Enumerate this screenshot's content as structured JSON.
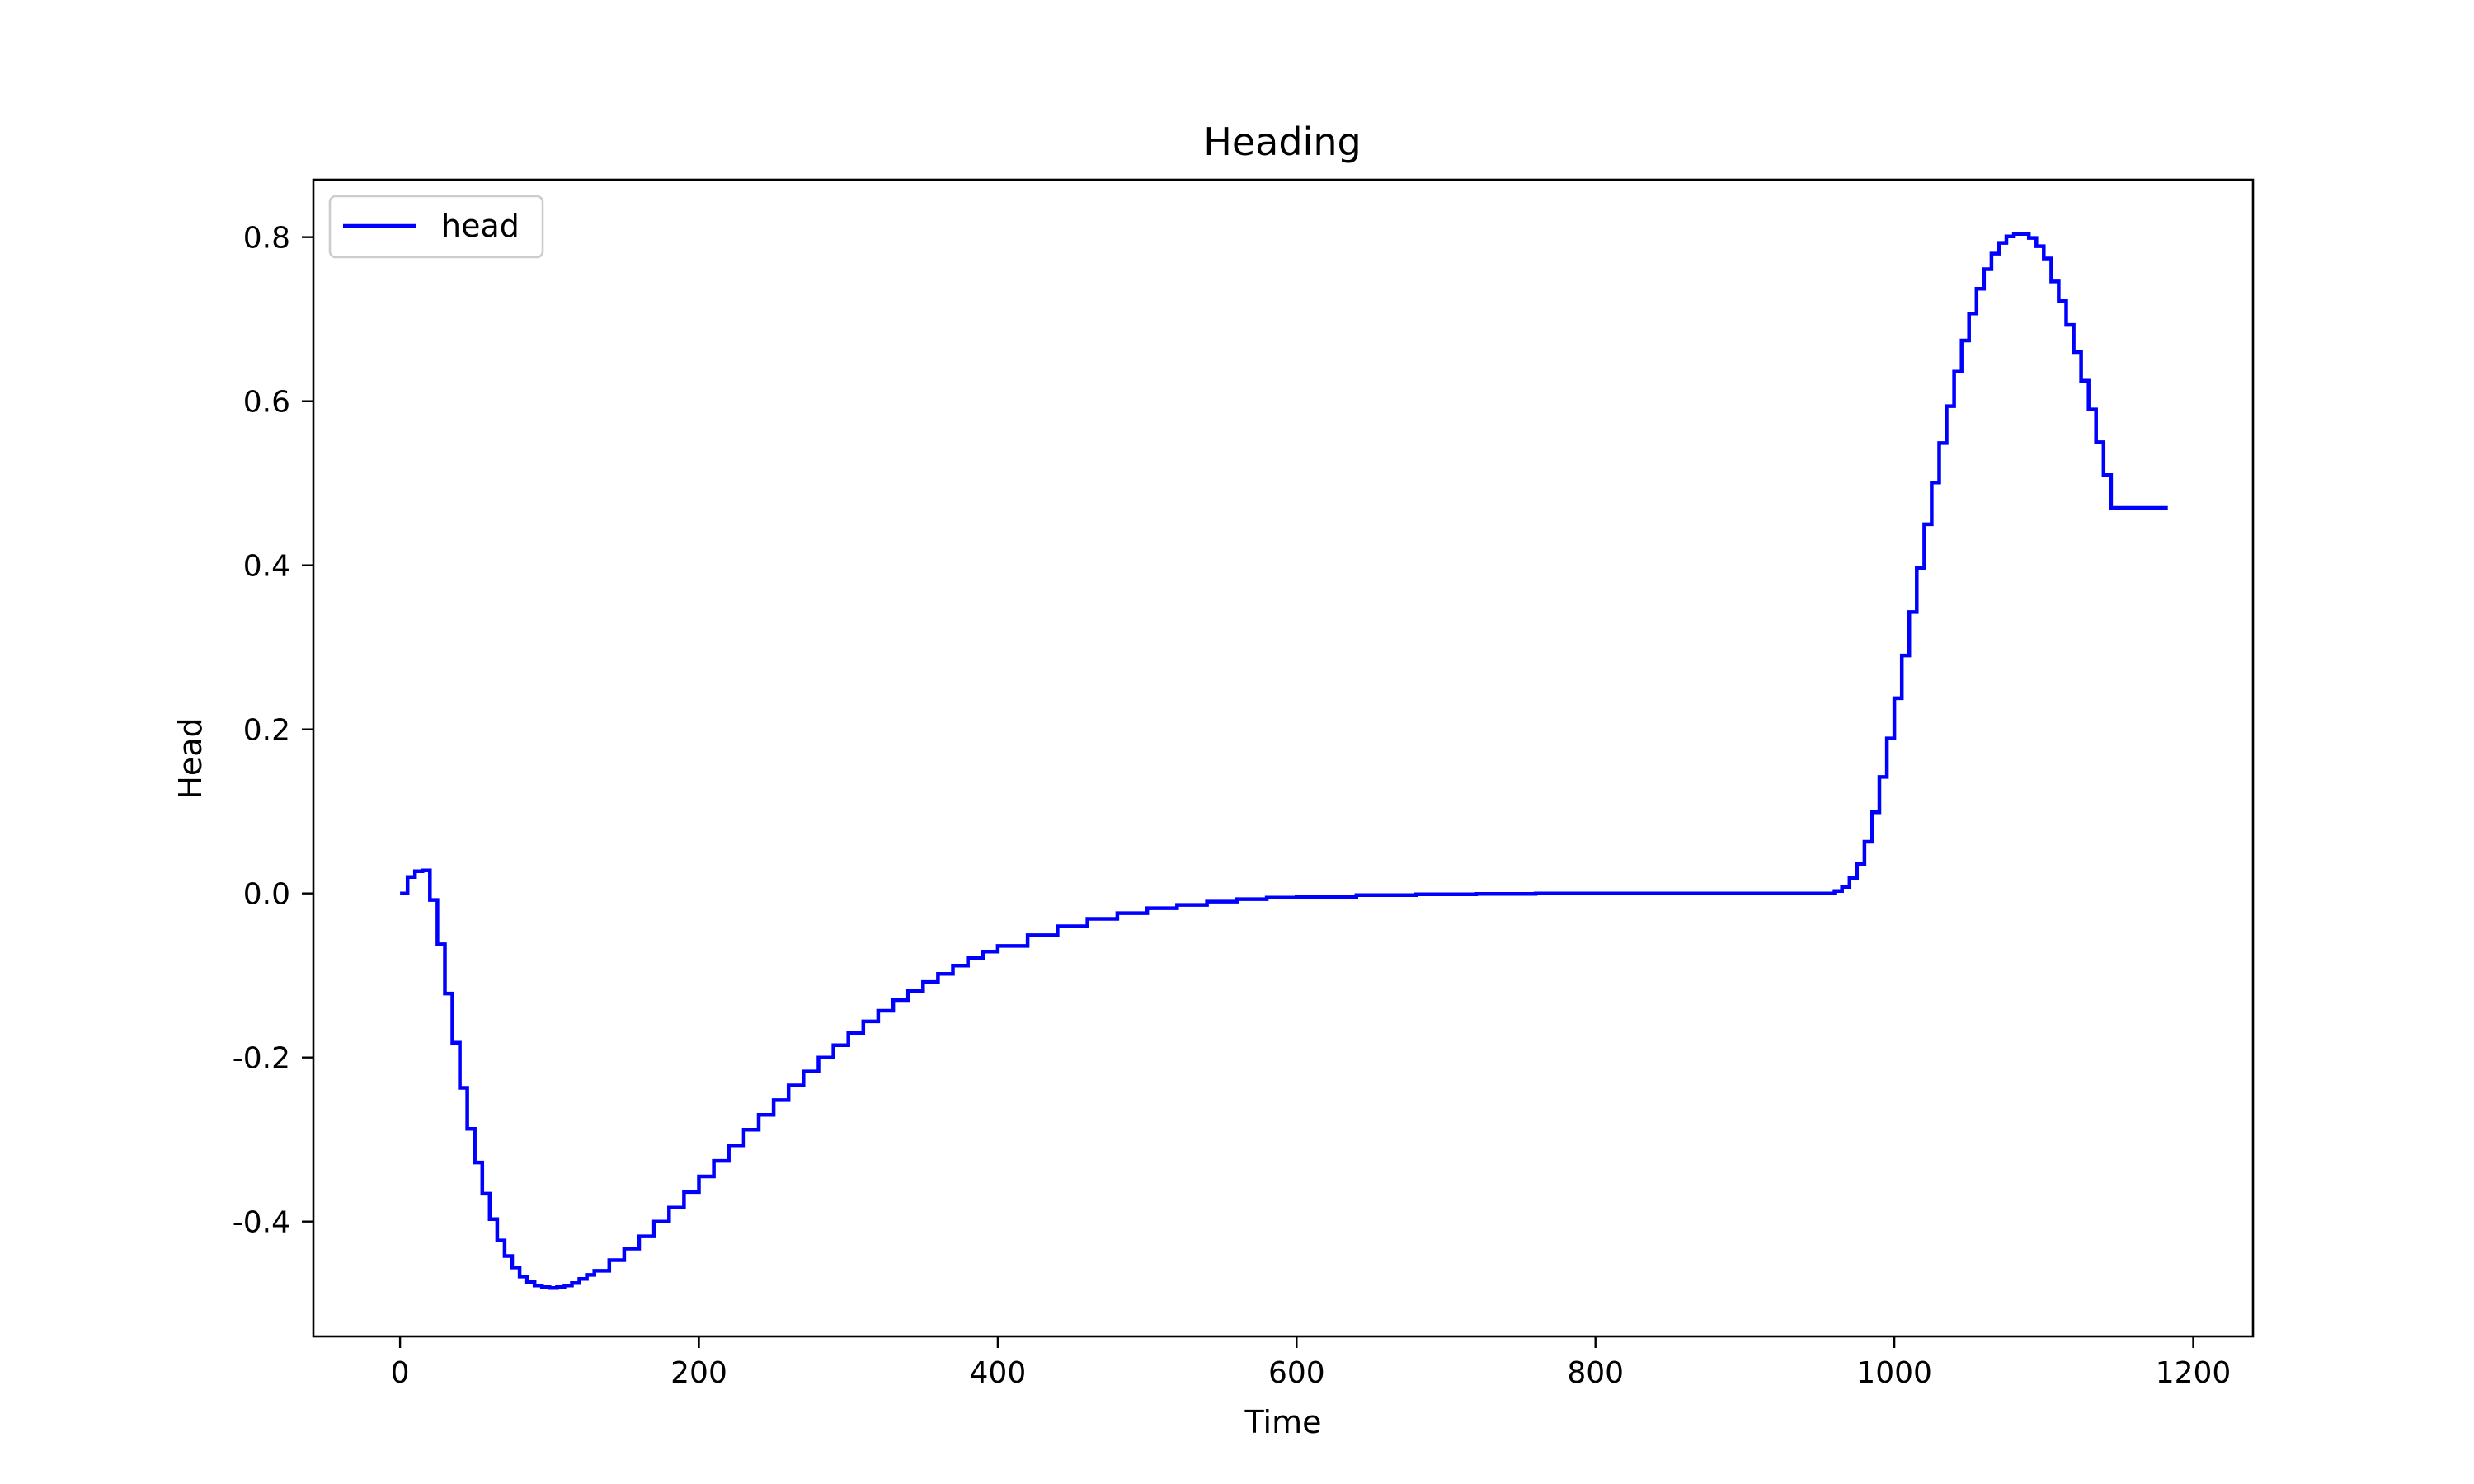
{
  "chart_data": {
    "type": "line",
    "title": "Heading",
    "xlabel": "Time",
    "ylabel": "Head",
    "xlim": [
      -58,
      1240
    ],
    "ylim": [
      -0.54,
      0.87
    ],
    "x_ticks": [
      0,
      200,
      400,
      600,
      800,
      1000,
      1200
    ],
    "x_tick_labels": [
      "0",
      "200",
      "400",
      "600",
      "800",
      "1000",
      "1200"
    ],
    "y_ticks": [
      -0.4,
      -0.2,
      0.0,
      0.2,
      0.4,
      0.6,
      0.8
    ],
    "y_tick_labels": [
      "-0.4",
      "-0.2",
      "0.0",
      "0.2",
      "0.4",
      "0.6",
      "0.8"
    ],
    "grid": false,
    "legend": {
      "position": "top-left",
      "entries": [
        "head"
      ]
    },
    "series": [
      {
        "name": "head",
        "color": "#0000ff",
        "step": true,
        "x": [
          0,
          5,
          10,
          15,
          20,
          25,
          30,
          35,
          40,
          45,
          50,
          55,
          60,
          65,
          70,
          75,
          80,
          85,
          90,
          95,
          100,
          105,
          110,
          115,
          120,
          125,
          130,
          140,
          150,
          160,
          170,
          180,
          190,
          200,
          210,
          220,
          230,
          240,
          250,
          260,
          270,
          280,
          290,
          300,
          310,
          320,
          330,
          340,
          350,
          360,
          370,
          380,
          390,
          400,
          420,
          440,
          460,
          480,
          500,
          520,
          540,
          560,
          580,
          600,
          640,
          680,
          720,
          760,
          800,
          850,
          900,
          950,
          960,
          965,
          970,
          975,
          980,
          985,
          990,
          995,
          1000,
          1005,
          1010,
          1015,
          1020,
          1025,
          1030,
          1035,
          1040,
          1045,
          1050,
          1055,
          1060,
          1065,
          1070,
          1075,
          1080,
          1085,
          1090,
          1095,
          1100,
          1105,
          1110,
          1115,
          1120,
          1125,
          1130,
          1135,
          1140,
          1145,
          1150,
          1155,
          1160,
          1165,
          1170,
          1175,
          1180,
          1183
        ],
        "y": [
          0.0,
          0.02,
          0.027,
          0.028,
          -0.008,
          -0.062,
          -0.122,
          -0.182,
          -0.237,
          -0.287,
          -0.328,
          -0.366,
          -0.397,
          -0.423,
          -0.442,
          -0.456,
          -0.467,
          -0.474,
          -0.478,
          -0.48,
          -0.481,
          -0.48,
          -0.478,
          -0.475,
          -0.47,
          -0.465,
          -0.46,
          -0.447,
          -0.433,
          -0.418,
          -0.4,
          -0.383,
          -0.364,
          -0.345,
          -0.326,
          -0.307,
          -0.288,
          -0.27,
          -0.252,
          -0.234,
          -0.217,
          -0.2,
          -0.185,
          -0.17,
          -0.156,
          -0.143,
          -0.13,
          -0.119,
          -0.108,
          -0.098,
          -0.088,
          -0.079,
          -0.071,
          -0.064,
          -0.051,
          -0.04,
          -0.031,
          -0.024,
          -0.018,
          -0.014,
          -0.01,
          -0.007,
          -0.005,
          -0.004,
          -0.002,
          -0.001,
          -0.0005,
          0.0,
          0.0,
          0.0,
          0.0,
          0.0,
          0.003,
          0.008,
          0.019,
          0.036,
          0.063,
          0.099,
          0.142,
          0.189,
          0.238,
          0.29,
          0.343,
          0.397,
          0.45,
          0.501,
          0.549,
          0.594,
          0.636,
          0.674,
          0.707,
          0.737,
          0.761,
          0.78,
          0.793,
          0.801,
          0.804,
          0.804,
          0.799,
          0.789,
          0.774,
          0.746,
          0.722,
          0.693,
          0.66,
          0.625,
          0.59,
          0.55,
          0.51,
          0.47,
          0.47,
          0.47,
          0.47,
          0.47,
          0.47,
          0.47,
          0.47,
          0.47
        ]
      }
    ]
  }
}
